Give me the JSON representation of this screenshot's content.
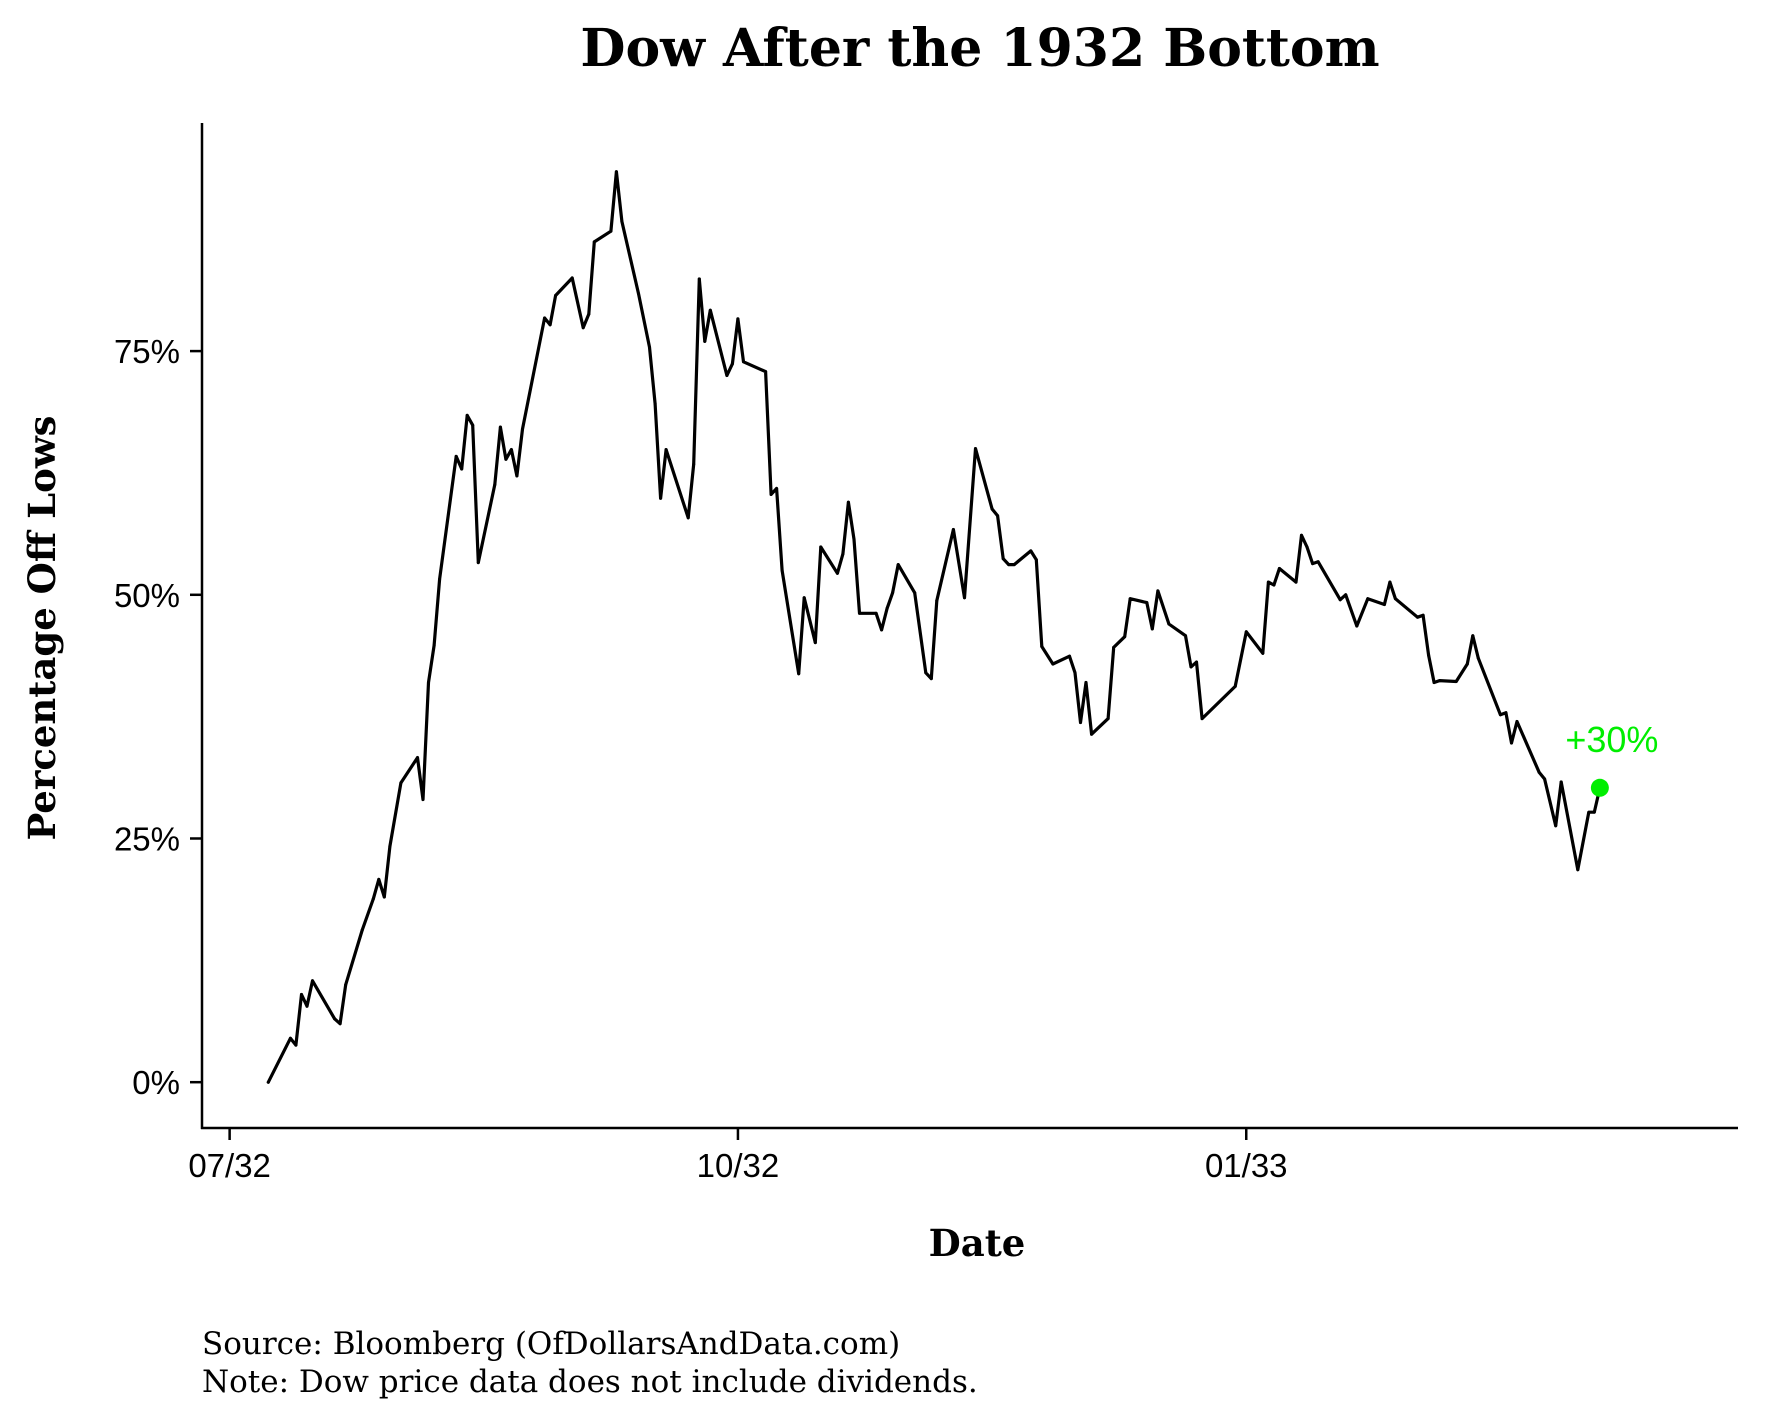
{
  "chart_data": {
    "type": "line",
    "title": "Dow After the 1932 Bottom",
    "xlabel": "Date",
    "ylabel": "Percentage Off Lows",
    "x_ticks": [
      {
        "label": "07/32",
        "date": "1932-07-01"
      },
      {
        "label": "10/32",
        "date": "1932-10-01"
      },
      {
        "label": "01/33",
        "date": "1933-01-01"
      }
    ],
    "y_ticks": [
      {
        "label": "0%",
        "value": 0
      },
      {
        "label": "25%",
        "value": 25
      },
      {
        "label": "50%",
        "value": 50
      },
      {
        "label": "75%",
        "value": 75
      }
    ],
    "xlim": [
      "1932-06-26",
      "1933-03-31"
    ],
    "ylim": [
      -4.7,
      98.4
    ],
    "grid": false,
    "line_color": "#000000",
    "highlight_color": "#00ee00",
    "series": [
      {
        "points": [
          [
            "1932-07-08",
            0
          ],
          [
            "1932-07-12",
            4.5
          ],
          [
            "1932-07-13",
            3.8
          ],
          [
            "1932-07-14",
            9.0
          ],
          [
            "1932-07-15",
            7.8
          ],
          [
            "1932-07-16",
            10.4
          ],
          [
            "1932-07-20",
            6.5
          ],
          [
            "1932-07-21",
            6.0
          ],
          [
            "1932-07-22",
            10.0
          ],
          [
            "1932-07-25",
            15.6
          ],
          [
            "1932-07-27",
            18.8
          ],
          [
            "1932-07-28",
            20.8
          ],
          [
            "1932-07-29",
            19.0
          ],
          [
            "1932-07-30",
            24.2
          ],
          [
            "1932-08-01",
            30.7
          ],
          [
            "1932-08-04",
            33.3
          ],
          [
            "1932-08-05",
            29.0
          ],
          [
            "1932-08-06",
            41.0
          ],
          [
            "1932-08-07",
            44.8
          ],
          [
            "1932-08-08",
            51.6
          ],
          [
            "1932-08-11",
            64.2
          ],
          [
            "1932-08-12",
            62.9
          ],
          [
            "1932-08-13",
            68.4
          ],
          [
            "1932-08-14",
            67.4
          ],
          [
            "1932-08-15",
            53.3
          ],
          [
            "1932-08-18",
            61.3
          ],
          [
            "1932-08-19",
            67.2
          ],
          [
            "1932-08-20",
            63.9
          ],
          [
            "1932-08-21",
            64.9
          ],
          [
            "1932-08-22",
            62.2
          ],
          [
            "1932-08-23",
            67.0
          ],
          [
            "1932-08-27",
            78.4
          ],
          [
            "1932-08-28",
            77.7
          ],
          [
            "1932-08-29",
            80.7
          ],
          [
            "1932-09-01",
            82.5
          ],
          [
            "1932-09-03",
            77.4
          ],
          [
            "1932-09-04",
            78.8
          ],
          [
            "1932-09-05",
            86.2
          ],
          [
            "1932-09-08",
            87.3
          ],
          [
            "1932-09-09",
            93.4
          ],
          [
            "1932-09-10",
            88.3
          ],
          [
            "1932-09-13",
            80.9
          ],
          [
            "1932-09-15",
            75.4
          ],
          [
            "1932-09-16",
            69.6
          ],
          [
            "1932-09-17",
            59.9
          ],
          [
            "1932-09-18",
            64.9
          ],
          [
            "1932-09-22",
            57.9
          ],
          [
            "1932-09-23",
            63.4
          ],
          [
            "1932-09-24",
            82.4
          ],
          [
            "1932-09-25",
            76.0
          ],
          [
            "1932-09-26",
            79.2
          ],
          [
            "1932-09-29",
            72.5
          ],
          [
            "1932-09-30",
            73.7
          ],
          [
            "1932-10-01",
            78.3
          ],
          [
            "1932-10-02",
            73.9
          ],
          [
            "1932-10-06",
            72.9
          ],
          [
            "1932-10-07",
            60.3
          ],
          [
            "1932-10-08",
            60.9
          ],
          [
            "1932-10-09",
            52.5
          ],
          [
            "1932-10-12",
            41.9
          ],
          [
            "1932-10-13",
            49.7
          ],
          [
            "1932-10-15",
            45.1
          ],
          [
            "1932-10-16",
            54.9
          ],
          [
            "1932-10-19",
            52.2
          ],
          [
            "1932-10-20",
            54.2
          ],
          [
            "1932-10-21",
            59.5
          ],
          [
            "1932-10-22",
            55.7
          ],
          [
            "1932-10-23",
            48.1
          ],
          [
            "1932-10-26",
            48.1
          ],
          [
            "1932-10-27",
            46.4
          ],
          [
            "1932-10-28",
            48.6
          ],
          [
            "1932-10-29",
            50.2
          ],
          [
            "1932-10-30",
            53.1
          ],
          [
            "1932-11-02",
            50.2
          ],
          [
            "1932-11-04",
            42.0
          ],
          [
            "1932-11-05",
            41.4
          ],
          [
            "1932-11-06",
            49.4
          ],
          [
            "1932-11-09",
            56.7
          ],
          [
            "1932-11-11",
            49.7
          ],
          [
            "1932-11-13",
            65.0
          ],
          [
            "1932-11-16",
            58.8
          ],
          [
            "1932-11-17",
            58.1
          ],
          [
            "1932-11-18",
            53.7
          ],
          [
            "1932-11-19",
            53.1
          ],
          [
            "1932-11-20",
            53.1
          ],
          [
            "1932-11-23",
            54.5
          ],
          [
            "1932-11-24",
            53.6
          ],
          [
            "1932-11-25",
            44.7
          ],
          [
            "1932-11-27",
            42.9
          ],
          [
            "1932-11-30",
            43.7
          ],
          [
            "1932-12-01",
            42.0
          ],
          [
            "1932-12-02",
            36.9
          ],
          [
            "1932-12-03",
            41.0
          ],
          [
            "1932-12-04",
            35.7
          ],
          [
            "1932-12-07",
            37.3
          ],
          [
            "1932-12-08",
            44.6
          ],
          [
            "1932-12-10",
            45.7
          ],
          [
            "1932-12-11",
            49.6
          ],
          [
            "1932-12-14",
            49.2
          ],
          [
            "1932-12-15",
            46.5
          ],
          [
            "1932-12-16",
            50.4
          ],
          [
            "1932-12-18",
            47.0
          ],
          [
            "1932-12-21",
            45.8
          ],
          [
            "1932-12-22",
            42.6
          ],
          [
            "1932-12-23",
            43.1
          ],
          [
            "1932-12-24",
            37.3
          ],
          [
            "1932-12-30",
            40.6
          ],
          [
            "1933-01-01",
            46.2
          ],
          [
            "1933-01-04",
            44.0
          ],
          [
            "1933-01-05",
            51.3
          ],
          [
            "1933-01-06",
            51.0
          ],
          [
            "1933-01-07",
            52.7
          ],
          [
            "1933-01-10",
            51.3
          ],
          [
            "1933-01-11",
            56.1
          ],
          [
            "1933-01-12",
            54.9
          ],
          [
            "1933-01-13",
            53.2
          ],
          [
            "1933-01-14",
            53.4
          ],
          [
            "1933-01-18",
            49.5
          ],
          [
            "1933-01-19",
            50.0
          ],
          [
            "1933-01-21",
            46.8
          ],
          [
            "1933-01-23",
            49.6
          ],
          [
            "1933-01-26",
            49.0
          ],
          [
            "1933-01-27",
            51.3
          ],
          [
            "1933-01-28",
            49.6
          ],
          [
            "1933-02-01",
            47.7
          ],
          [
            "1933-02-02",
            47.9
          ],
          [
            "1933-02-03",
            43.8
          ],
          [
            "1933-02-04",
            41.0
          ],
          [
            "1933-02-05",
            41.2
          ],
          [
            "1933-02-08",
            41.1
          ],
          [
            "1933-02-10",
            42.9
          ],
          [
            "1933-02-11",
            45.8
          ],
          [
            "1933-02-12",
            43.5
          ],
          [
            "1933-02-16",
            37.7
          ],
          [
            "1933-02-17",
            37.9
          ],
          [
            "1933-02-18",
            34.8
          ],
          [
            "1933-02-19",
            37.0
          ],
          [
            "1933-02-23",
            31.8
          ],
          [
            "1933-02-24",
            31.1
          ],
          [
            "1933-02-26",
            26.3
          ],
          [
            "1933-02-27",
            30.8
          ],
          [
            "1933-03-02",
            21.8
          ],
          [
            "1933-03-04",
            27.7
          ],
          [
            "1933-03-05",
            27.7
          ],
          [
            "1933-03-06",
            30.2
          ]
        ]
      }
    ],
    "annotation": {
      "label": "+30%",
      "date": "1933-03-06",
      "value": 30.2
    },
    "notes": [
      "Source: Bloomberg (OfDollarsAndData.com)",
      "Note: Dow price data does not include dividends."
    ]
  }
}
